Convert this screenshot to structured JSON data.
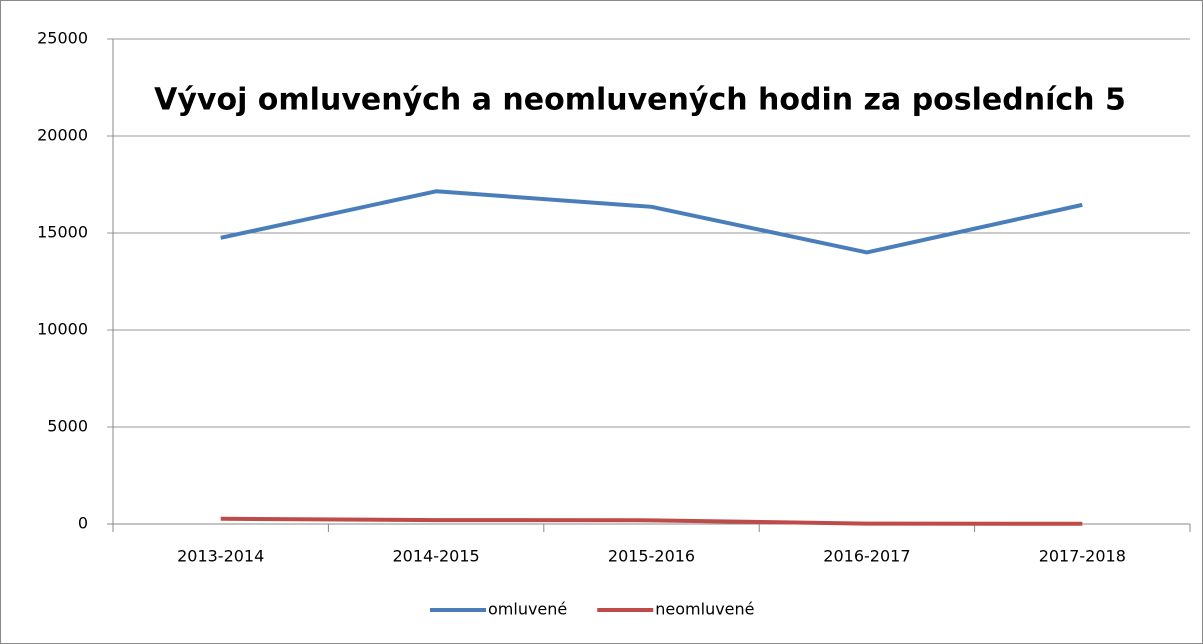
{
  "chart_data": {
    "type": "line",
    "title": "Vývoj omluvených a neomluvených hodin za posledních 5",
    "categories": [
      "2013-2014",
      "2014-2015",
      "2015-2016",
      "2016-2017",
      "2017-2018"
    ],
    "series": [
      {
        "name": "omluvené",
        "color": "#4a7ebb",
        "values": [
          14750,
          17150,
          16350,
          14000,
          16450
        ]
      },
      {
        "name": "neomluvené",
        "color": "#be4b48",
        "values": [
          270,
          200,
          190,
          20,
          10
        ]
      }
    ],
    "ylim": [
      0,
      25000
    ],
    "yticks": [
      0,
      5000,
      10000,
      15000,
      20000,
      25000
    ],
    "grid": true,
    "legend": "bottom"
  }
}
